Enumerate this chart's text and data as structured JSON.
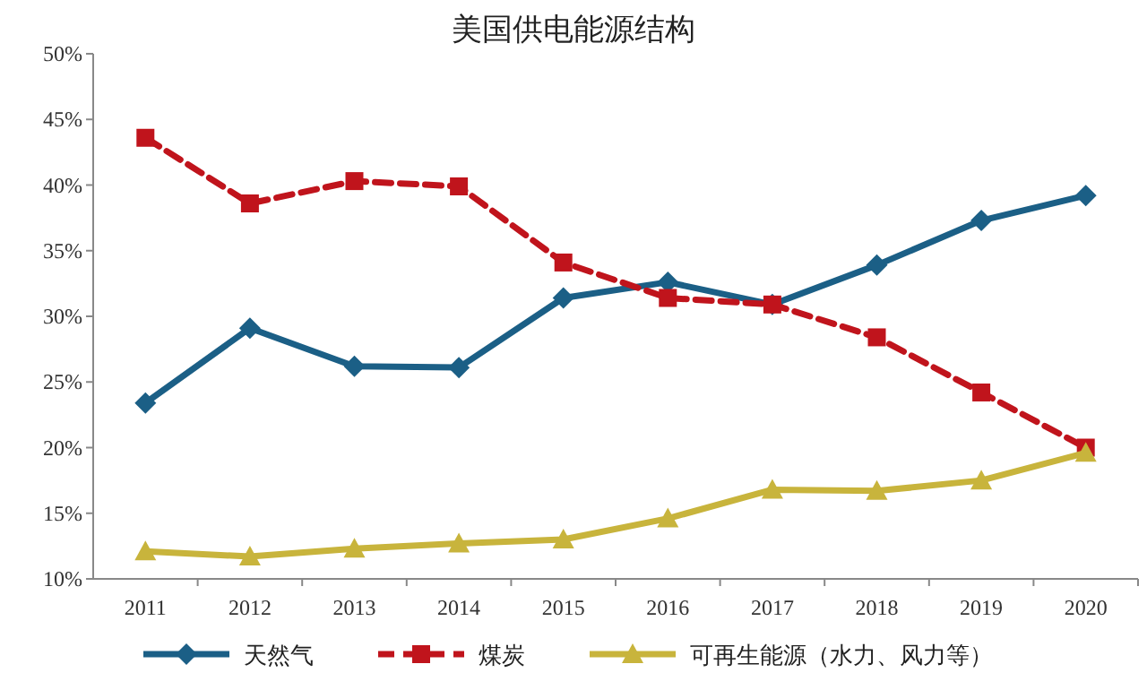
{
  "chart_data": {
    "type": "line",
    "title": "美国供电能源结构",
    "categories": [
      "2011",
      "2012",
      "2013",
      "2014",
      "2015",
      "2016",
      "2017",
      "2018",
      "2019",
      "2020"
    ],
    "series": [
      {
        "name": "天然气",
        "color": "#1b5f86",
        "marker": "diamond",
        "line_style": "solid",
        "values": [
          23.4,
          29.1,
          26.2,
          26.1,
          31.4,
          32.6,
          30.9,
          33.9,
          37.3,
          39.2
        ]
      },
      {
        "name": "煤炭",
        "color": "#c0141c",
        "marker": "square",
        "line_style": "dashed",
        "values": [
          43.6,
          38.6,
          40.3,
          39.9,
          34.1,
          31.4,
          30.9,
          28.4,
          24.2,
          20.0
        ]
      },
      {
        "name": "可再生能源（水力、风力等）",
        "color": "#c8b43c",
        "marker": "triangle",
        "line_style": "solid",
        "values": [
          12.1,
          11.7,
          12.3,
          12.7,
          13.0,
          14.6,
          16.8,
          16.7,
          17.5,
          19.6
        ]
      }
    ],
    "ylim": [
      10,
      50
    ],
    "yticks": [
      {
        "value": 10,
        "label": "10%"
      },
      {
        "value": 15,
        "label": "15%"
      },
      {
        "value": 20,
        "label": "20%"
      },
      {
        "value": 25,
        "label": "25%"
      },
      {
        "value": 30,
        "label": "30%"
      },
      {
        "value": 35,
        "label": "35%"
      },
      {
        "value": 40,
        "label": "40%"
      },
      {
        "value": 45,
        "label": "45%"
      },
      {
        "value": 50,
        "label": "50%"
      }
    ],
    "grid": false,
    "legend": "bottom"
  }
}
